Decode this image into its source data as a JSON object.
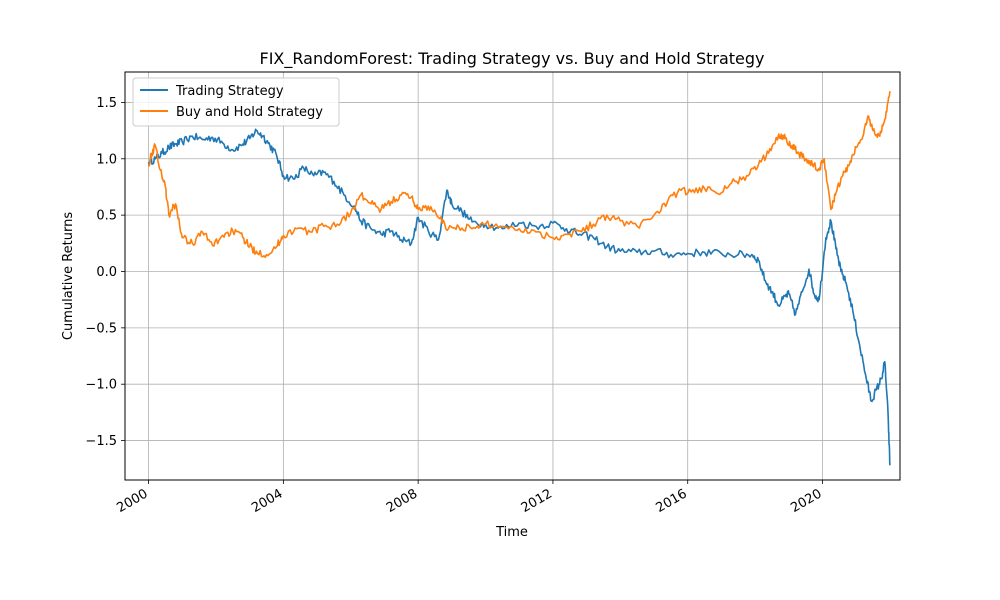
{
  "chart_data": {
    "type": "line",
    "title": "FIX_RandomForest: Trading Strategy vs. Buy and Hold Strategy",
    "xlabel": "Time",
    "ylabel": "Cumulative Returns",
    "xlim": [
      1999.3,
      2022.3
    ],
    "ylim": [
      -1.85,
      1.77
    ],
    "x_ticks": [
      2000,
      2004,
      2008,
      2012,
      2016,
      2020
    ],
    "x_tick_labels": [
      "2000",
      "2004",
      "2008",
      "2012",
      "2016",
      "2020"
    ],
    "y_ticks": [
      1.5,
      1.0,
      0.5,
      0.0,
      -0.5,
      -1.0,
      -1.5
    ],
    "y_tick_labels": [
      "1.5",
      "1.0",
      "0.5",
      "0.0",
      "−0.5",
      "−1.0",
      "−1.5"
    ],
    "grid": true,
    "legend_position": "top-left",
    "series": [
      {
        "name": "Trading Strategy",
        "color": "#1f77b4",
        "points": [
          [
            2000.0,
            0.97
          ],
          [
            2000.2,
            1.0
          ],
          [
            2000.4,
            1.05
          ],
          [
            2000.6,
            1.1
          ],
          [
            2000.8,
            1.13
          ],
          [
            2001.0,
            1.15
          ],
          [
            2001.3,
            1.2
          ],
          [
            2001.6,
            1.17
          ],
          [
            2001.9,
            1.19
          ],
          [
            2002.2,
            1.14
          ],
          [
            2002.5,
            1.08
          ],
          [
            2002.8,
            1.13
          ],
          [
            2003.0,
            1.18
          ],
          [
            2003.2,
            1.25
          ],
          [
            2003.4,
            1.2
          ],
          [
            2003.6,
            1.12
          ],
          [
            2003.8,
            1.03
          ],
          [
            2004.0,
            0.85
          ],
          [
            2004.3,
            0.82
          ],
          [
            2004.6,
            0.92
          ],
          [
            2004.9,
            0.85
          ],
          [
            2005.2,
            0.88
          ],
          [
            2005.5,
            0.8
          ],
          [
            2005.8,
            0.68
          ],
          [
            2006.1,
            0.58
          ],
          [
            2006.3,
            0.45
          ],
          [
            2006.6,
            0.38
          ],
          [
            2006.9,
            0.33
          ],
          [
            2007.2,
            0.36
          ],
          [
            2007.5,
            0.28
          ],
          [
            2007.8,
            0.25
          ],
          [
            2008.0,
            0.48
          ],
          [
            2008.3,
            0.36
          ],
          [
            2008.6,
            0.28
          ],
          [
            2008.85,
            0.72
          ],
          [
            2009.0,
            0.6
          ],
          [
            2009.3,
            0.53
          ],
          [
            2009.6,
            0.44
          ],
          [
            2010.0,
            0.42
          ],
          [
            2010.5,
            0.38
          ],
          [
            2011.0,
            0.43
          ],
          [
            2011.5,
            0.4
          ],
          [
            2012.0,
            0.43
          ],
          [
            2012.4,
            0.38
          ],
          [
            2012.8,
            0.33
          ],
          [
            2013.2,
            0.3
          ],
          [
            2013.6,
            0.22
          ],
          [
            2014.0,
            0.18
          ],
          [
            2014.5,
            0.17
          ],
          [
            2015.0,
            0.18
          ],
          [
            2015.5,
            0.15
          ],
          [
            2016.0,
            0.16
          ],
          [
            2016.5,
            0.17
          ],
          [
            2017.0,
            0.16
          ],
          [
            2017.5,
            0.15
          ],
          [
            2017.9,
            0.15
          ],
          [
            2018.1,
            0.1
          ],
          [
            2018.3,
            -0.08
          ],
          [
            2018.5,
            -0.18
          ],
          [
            2018.7,
            -0.3
          ],
          [
            2018.9,
            -0.22
          ],
          [
            2019.0,
            -0.2
          ],
          [
            2019.2,
            -0.38
          ],
          [
            2019.4,
            -0.18
          ],
          [
            2019.6,
            0.02
          ],
          [
            2019.75,
            -0.2
          ],
          [
            2019.9,
            -0.25
          ],
          [
            2020.1,
            0.3
          ],
          [
            2020.25,
            0.45
          ],
          [
            2020.4,
            0.2
          ],
          [
            2020.55,
            0.0
          ],
          [
            2020.7,
            -0.1
          ],
          [
            2020.9,
            -0.35
          ],
          [
            2021.1,
            -0.65
          ],
          [
            2021.3,
            -0.95
          ],
          [
            2021.45,
            -1.15
          ],
          [
            2021.6,
            -1.05
          ],
          [
            2021.75,
            -0.95
          ],
          [
            2021.85,
            -0.8
          ],
          [
            2021.95,
            -1.3
          ],
          [
            2022.0,
            -1.72
          ]
        ]
      },
      {
        "name": "Buy and Hold Strategy",
        "color": "#ff7f0e",
        "points": [
          [
            2000.0,
            0.95
          ],
          [
            2000.1,
            1.05
          ],
          [
            2000.2,
            1.12
          ],
          [
            2000.35,
            0.9
          ],
          [
            2000.5,
            0.75
          ],
          [
            2000.6,
            0.5
          ],
          [
            2000.8,
            0.6
          ],
          [
            2001.0,
            0.3
          ],
          [
            2001.3,
            0.25
          ],
          [
            2001.6,
            0.35
          ],
          [
            2001.9,
            0.23
          ],
          [
            2002.2,
            0.32
          ],
          [
            2002.5,
            0.36
          ],
          [
            2002.8,
            0.3
          ],
          [
            2003.0,
            0.22
          ],
          [
            2003.2,
            0.18
          ],
          [
            2003.5,
            0.15
          ],
          [
            2003.8,
            0.22
          ],
          [
            2004.0,
            0.32
          ],
          [
            2004.4,
            0.38
          ],
          [
            2004.8,
            0.35
          ],
          [
            2005.2,
            0.4
          ],
          [
            2005.6,
            0.42
          ],
          [
            2006.0,
            0.52
          ],
          [
            2006.3,
            0.68
          ],
          [
            2006.6,
            0.6
          ],
          [
            2006.9,
            0.55
          ],
          [
            2007.2,
            0.62
          ],
          [
            2007.5,
            0.68
          ],
          [
            2007.8,
            0.66
          ],
          [
            2008.0,
            0.55
          ],
          [
            2008.3,
            0.58
          ],
          [
            2008.6,
            0.48
          ],
          [
            2008.9,
            0.38
          ],
          [
            2009.2,
            0.4
          ],
          [
            2009.6,
            0.38
          ],
          [
            2010.0,
            0.42
          ],
          [
            2010.5,
            0.4
          ],
          [
            2011.0,
            0.38
          ],
          [
            2011.5,
            0.35
          ],
          [
            2012.0,
            0.3
          ],
          [
            2012.4,
            0.33
          ],
          [
            2012.8,
            0.36
          ],
          [
            2013.2,
            0.42
          ],
          [
            2013.6,
            0.5
          ],
          [
            2014.0,
            0.45
          ],
          [
            2014.5,
            0.4
          ],
          [
            2015.0,
            0.5
          ],
          [
            2015.4,
            0.62
          ],
          [
            2015.8,
            0.72
          ],
          [
            2016.2,
            0.7
          ],
          [
            2016.6,
            0.75
          ],
          [
            2017.0,
            0.7
          ],
          [
            2017.4,
            0.8
          ],
          [
            2017.8,
            0.85
          ],
          [
            2018.1,
            0.95
          ],
          [
            2018.4,
            1.05
          ],
          [
            2018.7,
            1.22
          ],
          [
            2018.9,
            1.18
          ],
          [
            2019.1,
            1.12
          ],
          [
            2019.3,
            1.05
          ],
          [
            2019.5,
            1.0
          ],
          [
            2019.7,
            0.95
          ],
          [
            2019.9,
            0.9
          ],
          [
            2020.05,
            1.0
          ],
          [
            2020.25,
            0.55
          ],
          [
            2020.4,
            0.7
          ],
          [
            2020.6,
            0.85
          ],
          [
            2020.8,
            0.95
          ],
          [
            2021.0,
            1.1
          ],
          [
            2021.2,
            1.2
          ],
          [
            2021.35,
            1.38
          ],
          [
            2021.5,
            1.25
          ],
          [
            2021.7,
            1.2
          ],
          [
            2021.85,
            1.35
          ],
          [
            2022.0,
            1.6
          ]
        ]
      }
    ]
  }
}
